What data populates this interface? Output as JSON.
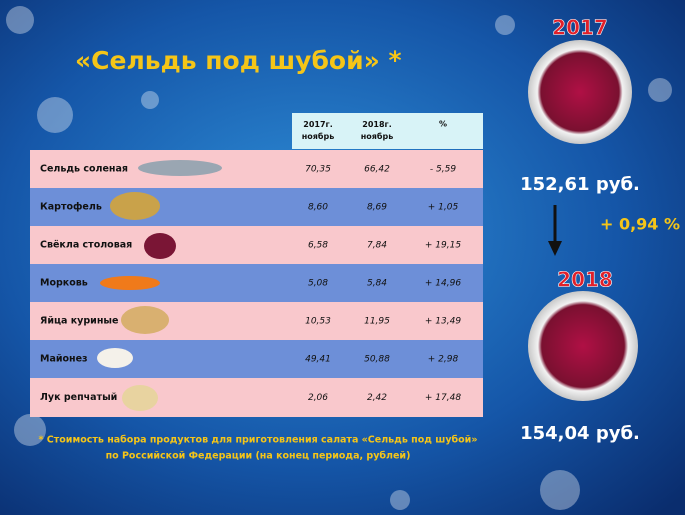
{
  "title": "«Сельдь под шубой» *",
  "table": {
    "header": [
      "2017г. ноябрь",
      "2018г. ноябрь",
      "%"
    ],
    "rows": [
      [
        "Сельдь соленая",
        "70,35",
        "66,42",
        "- 5,59"
      ],
      [
        "Картофель",
        "8,60",
        "8,69",
        "+ 1,05"
      ],
      [
        "Свёкла столовая",
        "6,58",
        "7,84",
        "+ 19,15"
      ],
      [
        "Морковь",
        "5,08",
        "5,84",
        "+ 14,96"
      ],
      [
        "Яйца куриные",
        "10,53",
        "11,95",
        "+ 13,49"
      ],
      [
        "Майонез",
        "49,41",
        "50,88",
        "+ 2,98"
      ],
      [
        "Лук репчатый",
        "2,06",
        "2,42",
        "+ 17,48"
      ]
    ]
  },
  "footnote": [
    "* Стоимость набора продуктов для приготовления салата «Сельдь под шубой»",
    "по Российской Федерации (на конец периода, рублей)"
  ],
  "summary": {
    "year_1": "2017",
    "cost_1": "152,61 руб.",
    "change": "+ 0,94 %",
    "year_2": "2018",
    "cost_2": "154,04 руб."
  }
}
